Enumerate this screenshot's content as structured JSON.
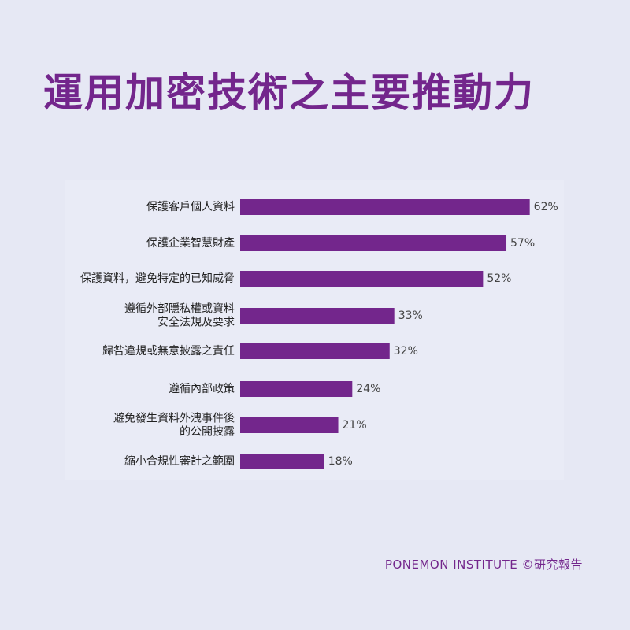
{
  "title": "運用加密技術之主要推動力",
  "footer": "PONEMON INSTITUTE ©研究報告",
  "colors": {
    "background": "#e6e8f4",
    "title": "#73268c",
    "bar": "#73268c"
  },
  "chart_data": {
    "type": "bar",
    "orientation": "horizontal",
    "categories": [
      [
        "保護客戶個人資料"
      ],
      [
        "保護企業智慧財產"
      ],
      [
        "保護資料，避免特定的已知威脅"
      ],
      [
        "遵循外部隱私權或資料",
        "安全法規及要求"
      ],
      [
        "歸咎違規或無意披露之責任"
      ],
      [
        "遵循內部政策"
      ],
      [
        "避免發生資料外洩事件後",
        "的公開披露"
      ],
      [
        "縮小合規性審計之範圍"
      ]
    ],
    "values": [
      62,
      57,
      52,
      33,
      32,
      24,
      21,
      18
    ],
    "value_labels": [
      "62%",
      "57%",
      "52%",
      "33%",
      "32%",
      "24%",
      "21%",
      "18%"
    ],
    "unit": "%",
    "xlim": [
      0,
      100
    ],
    "grid": false,
    "legend": "none"
  }
}
